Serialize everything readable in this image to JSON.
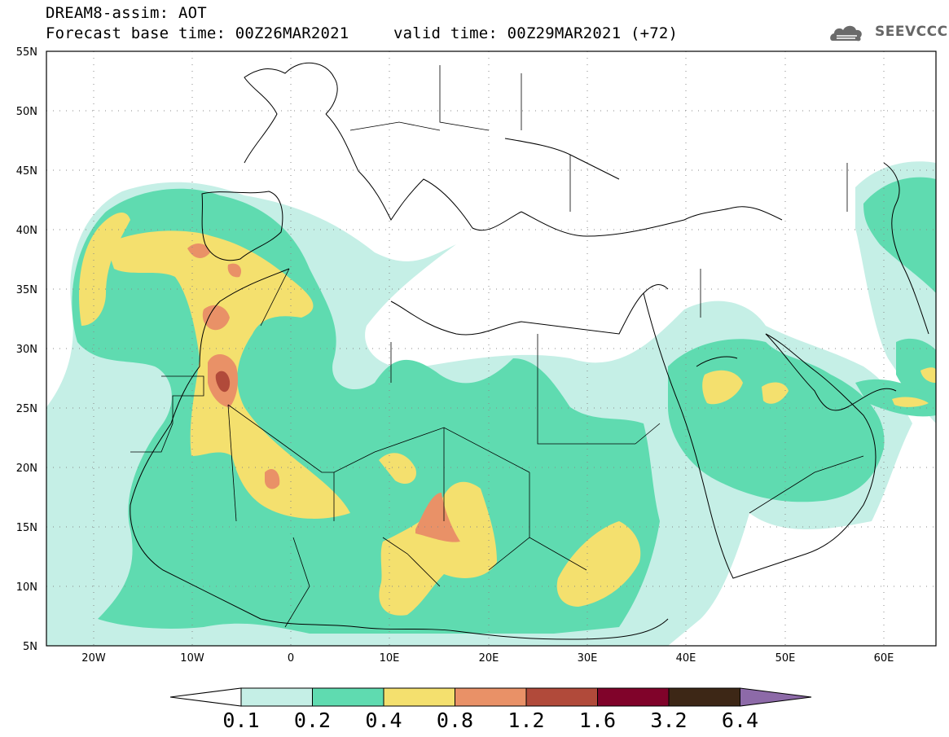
{
  "header": {
    "line1": "DREAM8-assim: AOT",
    "line2_left": "Forecast base time: 00Z26MAR2021",
    "line2_right": "valid time: 00Z29MAR2021 (+72)"
  },
  "logo": {
    "icon": "cloud-logo-icon",
    "text": "SEEVCCC"
  },
  "map": {
    "lat_labels": [
      "55N",
      "50N",
      "45N",
      "40N",
      "35N",
      "30N",
      "25N",
      "20N",
      "15N",
      "10N",
      "5N"
    ],
    "lon_labels": [
      "20W",
      "10W",
      "0",
      "10E",
      "20E",
      "30E",
      "40E",
      "50E",
      "60E"
    ],
    "lon_range": [
      -25,
      65
    ],
    "lat_range": [
      5,
      55
    ],
    "gridlines": "dotted"
  },
  "colorbar": {
    "labels": [
      "0.1",
      "0.2",
      "0.4",
      "0.8",
      "1.2",
      "1.6",
      "3.2",
      "6.4"
    ],
    "colors": [
      "#ffffff",
      "#c5efe6",
      "#5fdbb0",
      "#f4e06e",
      "#e99167",
      "#b14a3a",
      "#80032a",
      "#3d2716",
      "#8d6aa8"
    ]
  }
}
